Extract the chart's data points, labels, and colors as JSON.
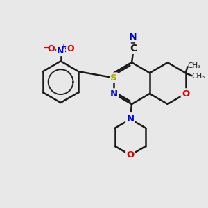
{
  "background_color": "#e8e8e8",
  "bond_color": "#1a1a1a",
  "bond_width": 1.8,
  "atom_colors": {
    "N": "#0000ee",
    "O": "#dd0000",
    "S": "#aaaa00",
    "C": "#1a1a1a",
    "N_cyan": "#0000cc"
  },
  "figsize": [
    3.0,
    3.0
  ],
  "dpi": 100
}
